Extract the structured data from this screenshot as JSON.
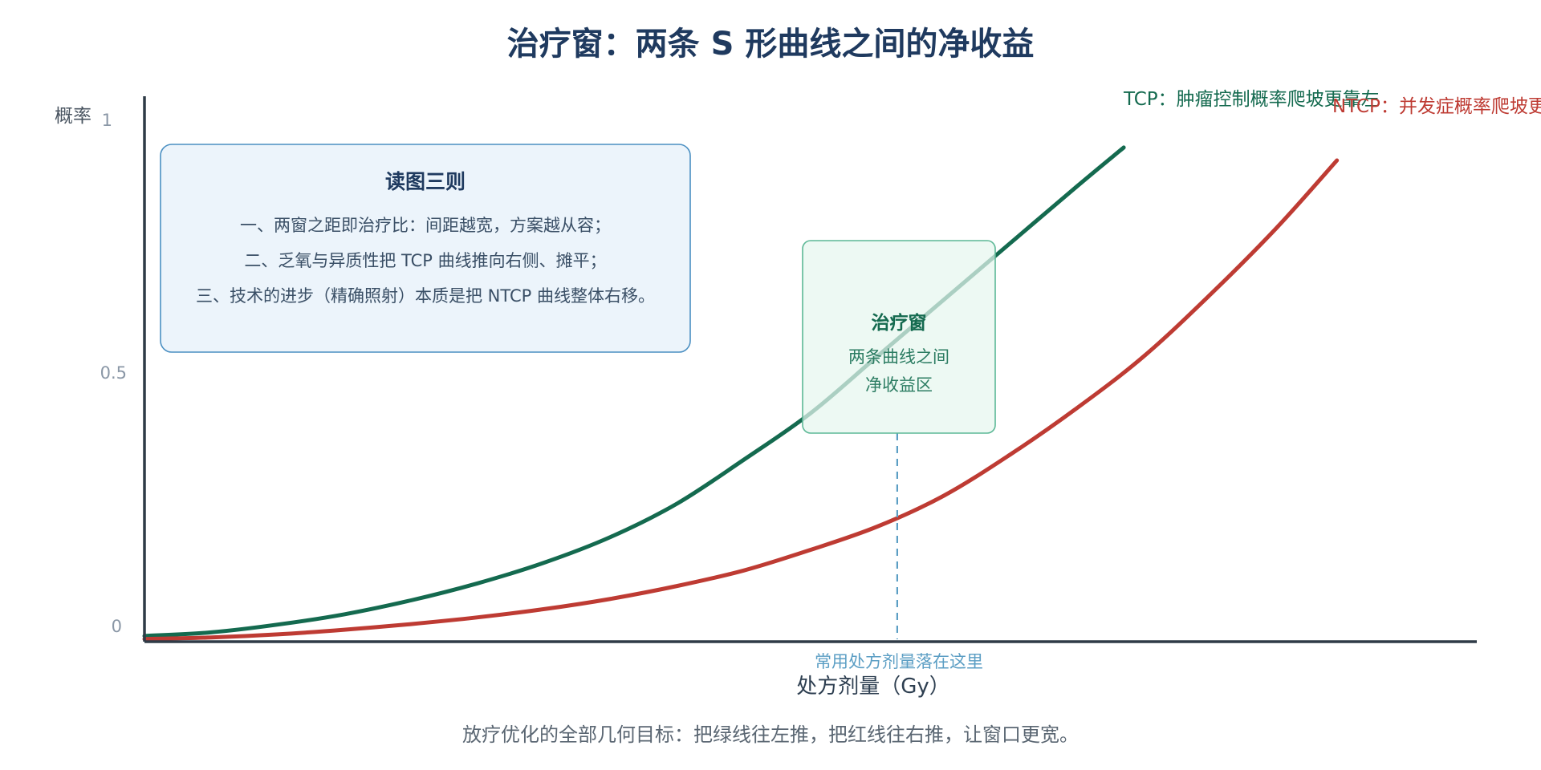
{
  "title": "治疗窗：两条 S 形曲线之间的净收益",
  "caption": "放疗优化的全部几何目标：把绿线往左推，把红线往右推，让窗口更宽。",
  "notes": {
    "title": "读图三则",
    "lines": [
      "一、两窗之距即治疗比：间距越宽，方案越从容；",
      "二、乏氧与异质性把 TCP 曲线推向右侧、摊平；",
      "三、技术的进步（精确照射）本质是把 NTCP 曲线整体右移。"
    ]
  },
  "window_box": {
    "title": "治疗窗",
    "line1": "两条曲线之间",
    "line2": "净收益区"
  },
  "marker_label": "常用处方剂量落在这里",
  "colors": {
    "tcp": "#146a4f",
    "ntcp": "#be3b33",
    "axis": "#2f3b47",
    "marker": "#5b9ec4"
  },
  "chart_data": {
    "type": "line",
    "title": "治疗窗：两条 S 形曲线之间的净收益",
    "xlabel": "处方剂量（Gy）",
    "ylabel": "概率",
    "y_ticks": [
      "0",
      "0.5",
      "1"
    ],
    "ylim": [
      0,
      1
    ],
    "x_range": [
      0,
      100
    ],
    "grid": false,
    "legend": "inline labels at curve ends",
    "series": [
      {
        "name": "TCP：肿瘤控制概率爬坡更靠左",
        "color": "#146a4f",
        "x": [
          0,
          5,
          10,
          15,
          20,
          25,
          30,
          35,
          40,
          45,
          50,
          55,
          60,
          65,
          70,
          73.5
        ],
        "y": [
          0.008,
          0.015,
          0.03,
          0.05,
          0.077,
          0.11,
          0.15,
          0.2,
          0.265,
          0.35,
          0.44,
          0.55,
          0.66,
          0.77,
          0.88,
          0.955
        ]
      },
      {
        "name": "NTCP：并发症概率爬坡更靠右",
        "color": "#be3b33",
        "x": [
          0,
          5,
          10,
          15,
          20,
          25,
          30,
          35,
          40,
          45,
          50,
          55,
          60,
          65,
          70,
          75,
          80,
          85,
          89.5
        ],
        "y": [
          0.002,
          0.005,
          0.011,
          0.02,
          0.031,
          0.044,
          0.06,
          0.08,
          0.105,
          0.135,
          0.175,
          0.22,
          0.28,
          0.36,
          0.45,
          0.55,
          0.67,
          0.8,
          0.93
        ]
      }
    ],
    "annotations": [
      {
        "text": "常用处方剂量落在这里",
        "x": 56.5
      }
    ]
  }
}
